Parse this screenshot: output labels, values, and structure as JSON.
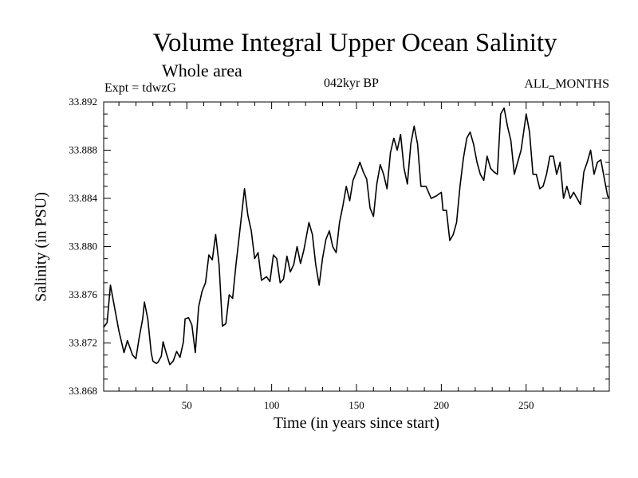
{
  "header": {
    "title": "Volume Integral Upper Ocean Salinity",
    "subtitle": "Whole area",
    "expt": "Expt = tdwzG",
    "period": "042kyr BP",
    "months": "ALL_MONTHS"
  },
  "chart_data": {
    "type": "line",
    "title": "Volume Integral Upper Ocean Salinity",
    "subtitle": "Whole area",
    "xlabel": "Time (in years since start)",
    "ylabel": "Salinity (in PSU)",
    "xlim": [
      1,
      299
    ],
    "ylim": [
      33.868,
      33.892
    ],
    "xticks": [
      50,
      100,
      150,
      200,
      250
    ],
    "yticks": [
      "33.868",
      "33.872",
      "33.876",
      "33.880",
      "33.884",
      "33.888",
      "33.892"
    ],
    "grid": false,
    "series": [
      {
        "color": "#000000",
        "x": [
          1,
          3,
          5,
          8,
          10,
          13,
          15,
          18,
          20,
          22,
          24,
          25,
          27,
          29,
          30,
          32,
          33,
          35,
          36,
          38,
          40,
          42,
          44,
          46,
          48,
          49,
          51,
          53,
          55,
          57,
          59,
          61,
          63,
          65,
          67,
          69,
          71,
          73,
          75,
          77,
          79,
          81,
          84,
          86,
          88,
          90,
          92,
          94,
          97,
          99,
          101,
          103,
          105,
          107,
          109,
          111,
          113,
          115,
          117,
          119,
          122,
          124,
          126,
          128,
          130,
          132,
          134,
          136,
          138,
          140,
          142,
          144,
          146,
          148,
          150,
          152,
          154,
          156,
          158,
          160,
          162,
          164,
          166,
          168,
          170,
          172,
          174,
          176,
          178,
          180,
          182,
          184,
          186,
          188,
          191,
          194,
          197,
          200,
          201,
          203,
          205,
          207,
          209,
          211,
          213,
          215,
          217,
          219,
          221,
          223,
          225,
          227,
          229,
          231,
          233,
          235,
          237,
          239,
          241,
          243,
          245,
          247,
          250,
          252,
          254,
          256,
          258,
          260,
          262,
          264,
          266,
          268,
          270,
          272,
          274,
          276,
          278,
          280,
          282,
          284,
          286,
          288,
          290,
          292,
          294,
          296,
          298,
          299
        ],
        "values": [
          33.8733,
          33.8737,
          33.8768,
          33.8745,
          33.873,
          33.8712,
          33.8722,
          33.871,
          33.8707,
          33.8725,
          33.874,
          33.8754,
          33.874,
          33.8712,
          33.8705,
          33.8703,
          33.8704,
          33.8709,
          33.8721,
          33.8711,
          33.8702,
          33.8705,
          33.8713,
          33.8708,
          33.8721,
          33.874,
          33.8741,
          33.8735,
          33.8712,
          33.875,
          33.8763,
          33.877,
          33.8793,
          33.8789,
          33.881,
          33.8785,
          33.8734,
          33.8736,
          33.876,
          33.8757,
          33.8785,
          33.881,
          33.8848,
          33.8826,
          33.8813,
          33.879,
          33.8795,
          33.8772,
          33.8775,
          33.8771,
          33.8793,
          33.879,
          33.877,
          33.8773,
          33.8792,
          33.8779,
          33.8785,
          33.88,
          33.8786,
          33.8797,
          33.882,
          33.881,
          33.8785,
          33.8768,
          33.879,
          33.8806,
          33.8813,
          33.88,
          33.8795,
          33.882,
          33.8834,
          33.885,
          33.8838,
          33.8855,
          33.8862,
          33.887,
          33.8862,
          33.8856,
          33.8832,
          33.8825,
          33.8852,
          33.8868,
          33.886,
          33.8848,
          33.8878,
          33.889,
          33.888,
          33.8893,
          33.8865,
          33.8852,
          33.8885,
          33.89,
          33.8885,
          33.885,
          33.885,
          33.884,
          33.8842,
          33.8845,
          33.883,
          33.883,
          33.8805,
          33.881,
          33.882,
          33.885,
          33.8873,
          33.889,
          33.8895,
          33.8885,
          33.887,
          33.886,
          33.8855,
          33.8875,
          33.8865,
          33.8862,
          33.886,
          33.891,
          33.8915,
          33.89,
          33.8888,
          33.886,
          33.887,
          33.888,
          33.891,
          33.8895,
          33.886,
          33.886,
          33.8848,
          33.885,
          33.886,
          33.8875,
          33.8875,
          33.886,
          33.887,
          33.884,
          33.885,
          33.884,
          33.8845,
          33.884,
          33.8835,
          33.8862,
          33.887,
          33.888,
          33.886,
          33.887,
          33.8872,
          33.8857,
          33.8842,
          33.884
        ]
      }
    ]
  }
}
